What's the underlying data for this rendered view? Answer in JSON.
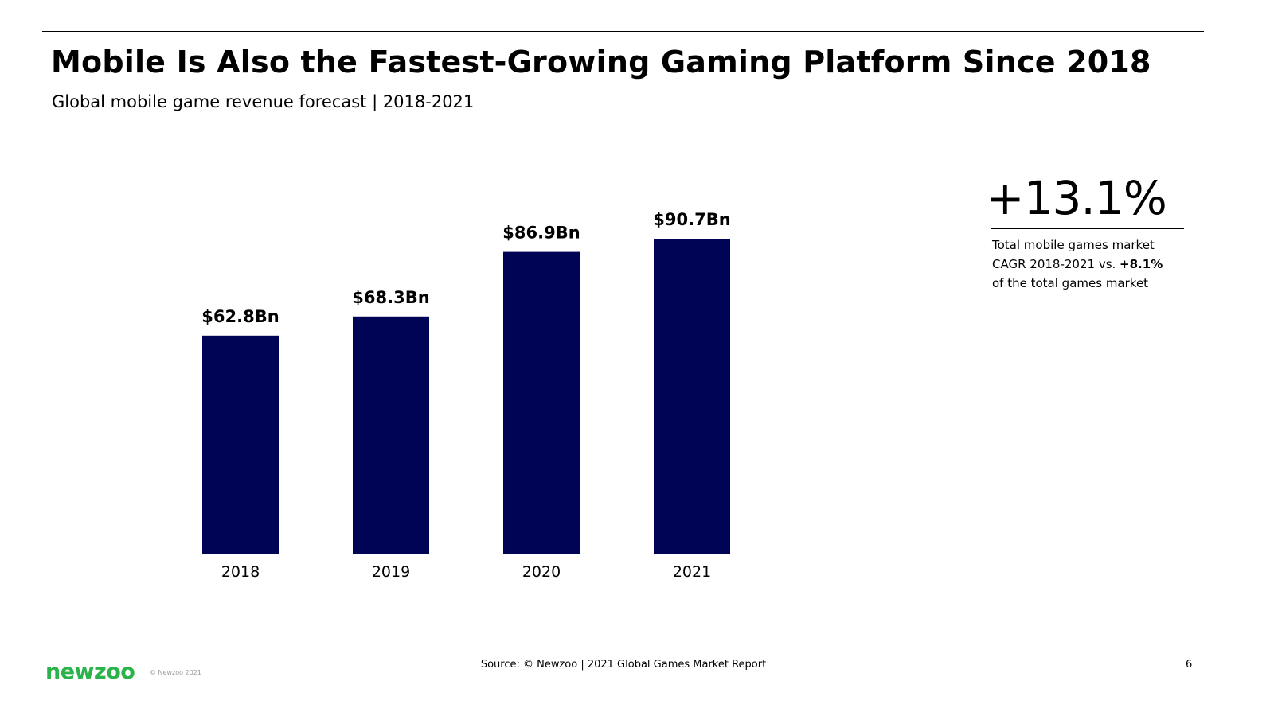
{
  "header": {
    "title": "Mobile Is Also the Fastest-Growing Gaming Platform Since 2018",
    "subtitle": "Global mobile game revenue forecast | 2018-2021"
  },
  "chart_data": {
    "type": "bar",
    "title": "Global mobile game revenue forecast | 2018-2021",
    "xlabel": "",
    "ylabel": "",
    "categories": [
      "2018",
      "2019",
      "2020",
      "2021"
    ],
    "values": [
      62.8,
      68.3,
      86.9,
      90.7
    ],
    "value_labels": [
      "$62.8Bn",
      "$68.3Bn",
      "$86.9Bn",
      "$90.7Bn"
    ],
    "unit": "Bn USD",
    "ylim": [
      0,
      90.7
    ],
    "grid": false,
    "legend": "none",
    "bar_color": "#000455"
  },
  "kpi": {
    "value": "+13.1%",
    "line1": "Total mobile games market",
    "line2_prefix": "CAGR 2018-2021 vs. ",
    "line2_bold": "+8.1%",
    "line3": "of the total games market"
  },
  "footer": {
    "logo": "newzoo",
    "copyright": "© Newzoo 2021",
    "source": "Source: © Newzoo | 2021 Global Games Market Report",
    "page": "6"
  },
  "colors": {
    "bar": "#000455",
    "logo": "#2bb34a",
    "text": "#000000"
  }
}
